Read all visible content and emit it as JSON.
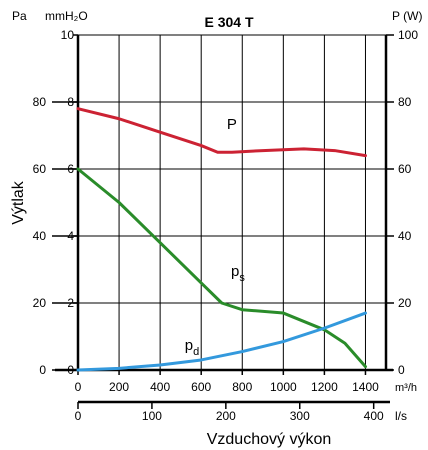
{
  "chart_data": {
    "type": "line",
    "title": "E 304 T",
    "ylabel": "Výtlak",
    "xlabel": "Vzduchový výkon",
    "left_units": {
      "pa": "Pa",
      "mm": "mmH₂O"
    },
    "right_unit": "P (W)",
    "x_unit_primary": "m³/h",
    "x_unit_secondary": "l/s",
    "xlim": [
      0,
      1500
    ],
    "ylim": [
      0,
      100
    ],
    "x_ticks": [
      "0",
      "200",
      "400",
      "600",
      "800",
      "1000",
      "1200",
      "1400"
    ],
    "y_ticks_pa": [
      "0",
      "20",
      "40",
      "60",
      "80"
    ],
    "y_ticks_mm": [
      "0",
      "2",
      "4",
      "6",
      "8",
      "10"
    ],
    "y_ticks_w": [
      "0",
      "20",
      "40",
      "60",
      "80",
      "100"
    ],
    "secondary_x_ticks": [
      "0",
      "100",
      "200",
      "300",
      "400"
    ],
    "grid": true,
    "series": [
      {
        "name": "P",
        "color": "#cc2233",
        "axis": "right",
        "x": [
          0,
          200,
          400,
          600,
          680,
          750,
          900,
          1100,
          1250,
          1400
        ],
        "y": [
          78,
          75,
          71,
          67,
          65,
          65,
          65.5,
          66,
          65.5,
          64
        ]
      },
      {
        "name": "p",
        "sub": "s",
        "color": "#2a8c2a",
        "axis": "left",
        "x": [
          0,
          200,
          400,
          600,
          700,
          800,
          1000,
          1200,
          1300,
          1400
        ],
        "y": [
          60,
          50,
          38,
          26,
          20,
          18,
          17,
          12,
          8,
          1
        ]
      },
      {
        "name": "p",
        "sub": "d",
        "color": "#3399dd",
        "axis": "left",
        "x": [
          0,
          200,
          400,
          600,
          800,
          1000,
          1200,
          1400
        ],
        "y": [
          0,
          0.5,
          1.5,
          3,
          5.5,
          8.5,
          12.5,
          17
        ]
      }
    ]
  }
}
